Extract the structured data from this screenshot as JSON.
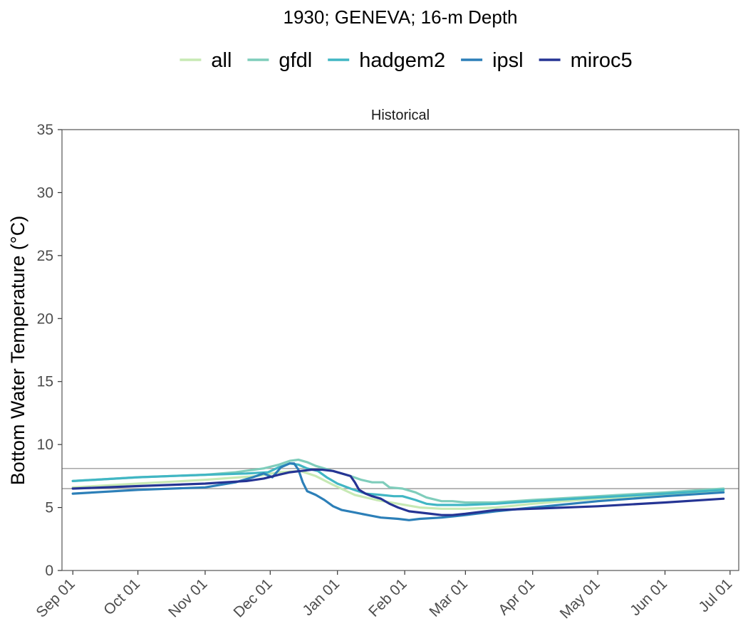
{
  "chart_data": {
    "type": "line",
    "title": "1930; GENEVA; 16-m Depth",
    "facet_label": "Historical",
    "xlabel": "",
    "ylabel": "Bottom Water Temperature (°C)",
    "ylim": [
      0,
      35
    ],
    "y_ticks": [
      0,
      5,
      10,
      15,
      20,
      25,
      30,
      35
    ],
    "x_ticks": [
      "Sep 01",
      "Oct 01",
      "Nov 01",
      "Dec 01",
      "Jan 01",
      "Feb 01",
      "Mar 01",
      "Apr 01",
      "May 01",
      "Jun 01",
      "Jul 01"
    ],
    "x_tick_days": [
      0,
      30,
      61,
      91,
      122,
      153,
      181,
      212,
      242,
      273,
      303
    ],
    "xlim_days": [
      -5,
      307
    ],
    "grid": false,
    "legend_position": "top",
    "reference_lines": [
      8.1,
      6.5
    ],
    "series": [
      {
        "name": "all",
        "color": "#c7e9b4",
        "points": [
          [
            0,
            6.6
          ],
          [
            30,
            6.9
          ],
          [
            61,
            7.2
          ],
          [
            85,
            7.5
          ],
          [
            95,
            7.8
          ],
          [
            105,
            7.9
          ],
          [
            112,
            7.5
          ],
          [
            120,
            6.8
          ],
          [
            130,
            6.0
          ],
          [
            140,
            5.6
          ],
          [
            150,
            5.3
          ],
          [
            160,
            5.0
          ],
          [
            170,
            4.9
          ],
          [
            181,
            4.9
          ],
          [
            195,
            5.0
          ],
          [
            212,
            5.3
          ],
          [
            242,
            5.7
          ],
          [
            273,
            6.0
          ],
          [
            300,
            6.3
          ]
        ]
      },
      {
        "name": "gfdl",
        "color": "#7fcdbb",
        "points": [
          [
            0,
            7.1
          ],
          [
            30,
            7.4
          ],
          [
            61,
            7.6
          ],
          [
            75,
            7.8
          ],
          [
            88,
            8.1
          ],
          [
            95,
            8.4
          ],
          [
            100,
            8.7
          ],
          [
            104,
            8.8
          ],
          [
            108,
            8.6
          ],
          [
            112,
            8.3
          ],
          [
            118,
            8.0
          ],
          [
            122,
            7.8
          ],
          [
            128,
            7.5
          ],
          [
            133,
            7.2
          ],
          [
            138,
            7.0
          ],
          [
            143,
            7.0
          ],
          [
            146,
            6.6
          ],
          [
            152,
            6.5
          ],
          [
            158,
            6.2
          ],
          [
            163,
            5.8
          ],
          [
            170,
            5.5
          ],
          [
            175,
            5.5
          ],
          [
            181,
            5.4
          ],
          [
            195,
            5.4
          ],
          [
            212,
            5.6
          ],
          [
            242,
            5.9
          ],
          [
            273,
            6.2
          ],
          [
            300,
            6.5
          ]
        ]
      },
      {
        "name": "hadgem2",
        "color": "#41b6c4",
        "points": [
          [
            0,
            7.1
          ],
          [
            30,
            7.4
          ],
          [
            61,
            7.6
          ],
          [
            80,
            7.7
          ],
          [
            90,
            7.8
          ],
          [
            95,
            8.2
          ],
          [
            100,
            8.5
          ],
          [
            104,
            8.4
          ],
          [
            108,
            8.1
          ],
          [
            113,
            7.9
          ],
          [
            117,
            7.4
          ],
          [
            122,
            6.9
          ],
          [
            128,
            6.5
          ],
          [
            135,
            6.1
          ],
          [
            142,
            6.0
          ],
          [
            148,
            5.9
          ],
          [
            152,
            5.9
          ],
          [
            158,
            5.6
          ],
          [
            163,
            5.3
          ],
          [
            168,
            5.2
          ],
          [
            175,
            5.2
          ],
          [
            181,
            5.2
          ],
          [
            195,
            5.3
          ],
          [
            212,
            5.5
          ],
          [
            242,
            5.8
          ],
          [
            273,
            6.1
          ],
          [
            300,
            6.4
          ]
        ]
      },
      {
        "name": "ipsl",
        "color": "#2c7fb8",
        "points": [
          [
            0,
            6.1
          ],
          [
            30,
            6.4
          ],
          [
            61,
            6.6
          ],
          [
            75,
            7.0
          ],
          [
            83,
            7.4
          ],
          [
            88,
            7.7
          ],
          [
            92,
            7.4
          ],
          [
            96,
            8.2
          ],
          [
            100,
            8.5
          ],
          [
            102,
            8.5
          ],
          [
            104,
            8.0
          ],
          [
            106,
            7.0
          ],
          [
            108,
            6.3
          ],
          [
            112,
            6.0
          ],
          [
            116,
            5.6
          ],
          [
            120,
            5.1
          ],
          [
            124,
            4.8
          ],
          [
            130,
            4.6
          ],
          [
            136,
            4.4
          ],
          [
            142,
            4.2
          ],
          [
            150,
            4.1
          ],
          [
            155,
            4.0
          ],
          [
            160,
            4.1
          ],
          [
            170,
            4.2
          ],
          [
            181,
            4.4
          ],
          [
            195,
            4.7
          ],
          [
            212,
            5.0
          ],
          [
            242,
            5.5
          ],
          [
            273,
            5.9
          ],
          [
            300,
            6.2
          ]
        ]
      },
      {
        "name": "miroc5",
        "color": "#253494",
        "points": [
          [
            0,
            6.5
          ],
          [
            30,
            6.7
          ],
          [
            61,
            6.9
          ],
          [
            70,
            7.0
          ],
          [
            80,
            7.1
          ],
          [
            88,
            7.3
          ],
          [
            95,
            7.6
          ],
          [
            100,
            7.8
          ],
          [
            105,
            7.9
          ],
          [
            110,
            8.0
          ],
          [
            115,
            8.0
          ],
          [
            120,
            7.9
          ],
          [
            124,
            7.7
          ],
          [
            128,
            7.5
          ],
          [
            130,
            7.0
          ],
          [
            132,
            6.4
          ],
          [
            135,
            6.1
          ],
          [
            138,
            5.9
          ],
          [
            142,
            5.7
          ],
          [
            146,
            5.3
          ],
          [
            150,
            5.0
          ],
          [
            155,
            4.7
          ],
          [
            160,
            4.6
          ],
          [
            165,
            4.5
          ],
          [
            170,
            4.4
          ],
          [
            175,
            4.4
          ],
          [
            181,
            4.5
          ],
          [
            195,
            4.8
          ],
          [
            212,
            4.9
          ],
          [
            242,
            5.1
          ],
          [
            273,
            5.4
          ],
          [
            300,
            5.7
          ]
        ]
      }
    ]
  }
}
